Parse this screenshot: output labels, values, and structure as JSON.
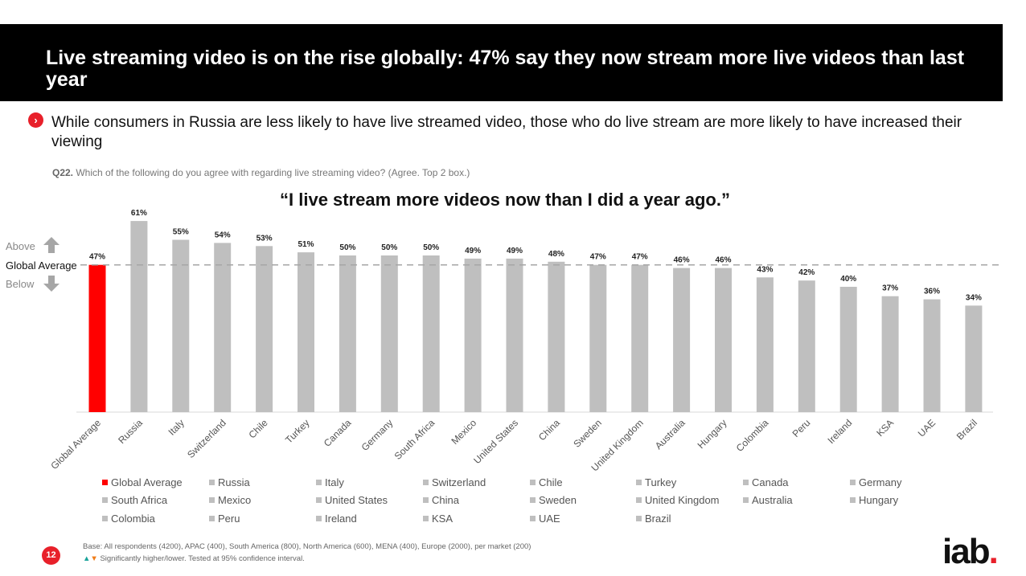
{
  "header": {
    "title": "Live streaming video is on the rise globally: 47% say they now stream more live videos than last year"
  },
  "subtitle": "While consumers in Russia are less likely to have live streamed video, those who do live stream are more likely to have increased their viewing",
  "question": {
    "code": "Q22.",
    "text": "Which of the following do you agree with regarding live streaming video? (Agree. Top 2 box.)"
  },
  "side_labels": {
    "above": "Above",
    "global": "Global Average",
    "below": "Below"
  },
  "colors": {
    "highlight": "#ff0000",
    "bar": "#bfbfbf",
    "accent": "#e8202a"
  },
  "chart_data": {
    "type": "bar",
    "title": "“I live stream more videos now than I did a year ago.”",
    "categories": [
      "Global Average",
      "Russia",
      "Italy",
      "Switzerland",
      "Chile",
      "Turkey",
      "Canada",
      "Germany",
      "South Africa",
      "Mexico",
      "United States",
      "China",
      "Sweden",
      "United Kingdom",
      "Australia",
      "Hungary",
      "Colombia",
      "Peru",
      "Ireland",
      "KSA",
      "UAE",
      "Brazil"
    ],
    "values": [
      47,
      61,
      55,
      54,
      53,
      51,
      50,
      50,
      50,
      49,
      49,
      48,
      47,
      47,
      46,
      46,
      43,
      42,
      40,
      37,
      36,
      34
    ],
    "data_labels": [
      "47%",
      "61%",
      "55%",
      "54%",
      "53%",
      "51%",
      "50%",
      "50%",
      "50%",
      "49%",
      "49%",
      "48%",
      "47%",
      "47%",
      "46%",
      "46%",
      "43%",
      "42%",
      "40%",
      "37%",
      "36%",
      "34%"
    ],
    "reference_line": 47,
    "unit": "%",
    "ylim": [
      0,
      65
    ],
    "legend": "bottom",
    "grid": false
  },
  "footer": {
    "page": "12",
    "base": "Base: All respondents (4200), APAC (400), South America (800), North America (600), MENA (400), Europe (2000), per market (200)",
    "sig": "Significantly higher/lower. Tested at 95% confidence interval."
  },
  "logo": {
    "text": "iab",
    "dot": "."
  }
}
